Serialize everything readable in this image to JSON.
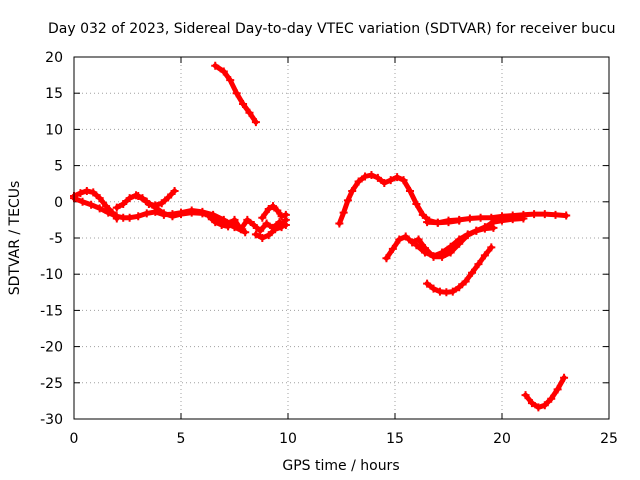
{
  "chart_data": {
    "type": "scatter",
    "title": "Day 032 of 2023, Sidereal Day-to-day VTEC variation (SDTVAR) for receiver bucu",
    "xlabel": "GPS time / hours",
    "ylabel": "SDTVAR / TECUs",
    "xlim": [
      0,
      25
    ],
    "ylim": [
      -30,
      20
    ],
    "xticks": [
      0,
      5,
      10,
      15,
      20,
      25
    ],
    "yticks": [
      -30,
      -25,
      -20,
      -15,
      -10,
      -5,
      0,
      5,
      10,
      15,
      20
    ],
    "xtick_labels": [
      "0",
      "5",
      "10",
      "15",
      "20",
      "25"
    ],
    "ytick_labels": [
      "-30",
      "-25",
      "-20",
      "-15",
      "-10",
      "-5",
      "0",
      "5",
      "10",
      "15",
      "20"
    ],
    "grid": true,
    "legend": "none",
    "marker": "+",
    "color": "#ff0000",
    "series": [
      {
        "name": "track-1",
        "x": [
          0.0,
          0.3,
          0.6,
          0.9,
          1.2,
          1.5,
          1.8,
          2.0
        ],
        "y": [
          0.8,
          1.2,
          1.5,
          1.3,
          0.5,
          -0.6,
          -1.5,
          -2.3
        ]
      },
      {
        "name": "track-2",
        "x": [
          0.0,
          0.4,
          0.8,
          1.2,
          1.6,
          2.0,
          2.3,
          2.6,
          3.0,
          3.4,
          3.8,
          4.2,
          4.6,
          5.0,
          5.5,
          6.0,
          6.5,
          7.0,
          7.3
        ],
        "y": [
          0.5,
          0.0,
          -0.4,
          -0.9,
          -1.5,
          -2.0,
          -2.2,
          -2.2,
          -2.0,
          -1.6,
          -1.4,
          -1.8,
          -1.7,
          -1.5,
          -1.2,
          -1.4,
          -1.8,
          -2.5,
          -3.0
        ]
      },
      {
        "name": "track-3",
        "x": [
          2.0,
          2.3,
          2.6,
          2.9,
          3.2,
          3.5,
          3.8,
          4.1,
          4.4,
          4.7
        ],
        "y": [
          -0.8,
          -0.3,
          0.5,
          0.9,
          0.5,
          -0.3,
          -0.5,
          -0.2,
          0.6,
          1.5
        ]
      },
      {
        "name": "track-4",
        "x": [
          3.0,
          3.4,
          3.8,
          4.2,
          4.6,
          5.0,
          5.5,
          6.0,
          6.5,
          7.0,
          7.5,
          8.0
        ],
        "y": [
          0.8,
          0.0,
          -0.8,
          -1.6,
          -2.0,
          -1.7,
          -1.5,
          -1.6,
          -2.0,
          -2.8,
          -3.5,
          -4.2
        ]
      },
      {
        "name": "track-5",
        "x": [
          6.3,
          6.6,
          6.9,
          7.2,
          7.5,
          7.8,
          8.1,
          8.4,
          8.7,
          9.0,
          9.3,
          9.6,
          9.9
        ],
        "y": [
          -2.0,
          -2.8,
          -3.2,
          -3.4,
          -2.5,
          -3.8,
          -2.5,
          -3.2,
          -4.0,
          -3.0,
          -3.6,
          -2.8,
          -3.2
        ]
      },
      {
        "name": "track-6",
        "x": [
          8.5,
          8.8,
          9.1,
          9.4,
          9.7,
          9.9
        ],
        "y": [
          -4.5,
          -5.0,
          -4.6,
          -3.8,
          -3.5,
          -2.5
        ]
      },
      {
        "name": "track-7",
        "x": [
          8.8,
          9.1,
          9.3,
          9.5,
          9.7,
          9.9
        ],
        "y": [
          -2.2,
          -1.0,
          -0.6,
          -1.2,
          -2.0,
          -1.8
        ]
      },
      {
        "name": "track-8",
        "x": [
          6.6,
          7.0,
          7.3,
          7.6,
          7.9,
          8.2,
          8.5
        ],
        "y": [
          18.8,
          18.0,
          16.8,
          15.0,
          13.5,
          12.3,
          11.0
        ]
      },
      {
        "name": "track-9",
        "x": [
          12.4,
          12.6,
          12.8,
          13.0,
          13.3,
          13.6,
          13.9,
          14.2,
          14.5,
          14.8,
          15.1,
          15.4,
          15.7,
          16.0,
          16.3,
          16.6,
          17.0,
          17.5,
          18.0
        ],
        "y": [
          -3.0,
          -1.5,
          0.2,
          1.5,
          2.8,
          3.5,
          3.7,
          3.3,
          2.6,
          3.0,
          3.4,
          3.0,
          1.5,
          -0.3,
          -1.8,
          -2.6,
          -2.9,
          -2.8,
          -2.6
        ]
      },
      {
        "name": "track-10",
        "x": [
          16.5,
          17.0,
          17.5,
          18.0,
          18.5,
          19.0,
          19.5,
          20.0,
          20.5,
          21.0,
          21.5,
          22.0,
          22.5,
          23.0
        ],
        "y": [
          -2.8,
          -2.9,
          -2.6,
          -2.5,
          -2.3,
          -2.2,
          -2.2,
          -2.0,
          -1.9,
          -1.8,
          -1.7,
          -1.7,
          -1.8,
          -1.9
        ]
      },
      {
        "name": "track-11",
        "x": [
          14.6,
          14.9,
          15.2,
          15.5,
          15.8,
          16.1,
          16.4,
          16.8,
          17.2,
          17.6,
          18.0,
          18.4,
          18.8,
          19.2,
          19.6,
          20.0,
          20.5,
          21.0
        ],
        "y": [
          -7.8,
          -6.5,
          -5.2,
          -4.8,
          -5.6,
          -5.2,
          -6.4,
          -7.6,
          -7.6,
          -7.0,
          -5.8,
          -4.6,
          -4.0,
          -3.5,
          -2.8,
          -2.6,
          -2.4,
          -2.3
        ]
      },
      {
        "name": "track-12",
        "x": [
          16.0,
          16.4,
          16.8,
          17.2,
          17.6,
          18.0,
          18.4,
          18.8,
          19.2,
          19.6
        ],
        "y": [
          -6.0,
          -7.0,
          -7.5,
          -7.0,
          -6.2,
          -5.2,
          -4.5,
          -4.0,
          -3.7,
          -3.6
        ]
      },
      {
        "name": "track-13",
        "x": [
          16.5,
          16.8,
          17.1,
          17.4,
          17.7,
          18.0,
          18.3,
          18.6,
          18.9,
          19.2,
          19.5
        ],
        "y": [
          -11.3,
          -12.0,
          -12.4,
          -12.5,
          -12.4,
          -11.8,
          -11.0,
          -9.8,
          -8.6,
          -7.4,
          -6.3
        ]
      },
      {
        "name": "track-14",
        "x": [
          21.1,
          21.4,
          21.7,
          22.0,
          22.3,
          22.6,
          22.9
        ],
        "y": [
          -26.7,
          -27.8,
          -28.4,
          -28.1,
          -27.2,
          -25.9,
          -24.3
        ]
      }
    ]
  }
}
